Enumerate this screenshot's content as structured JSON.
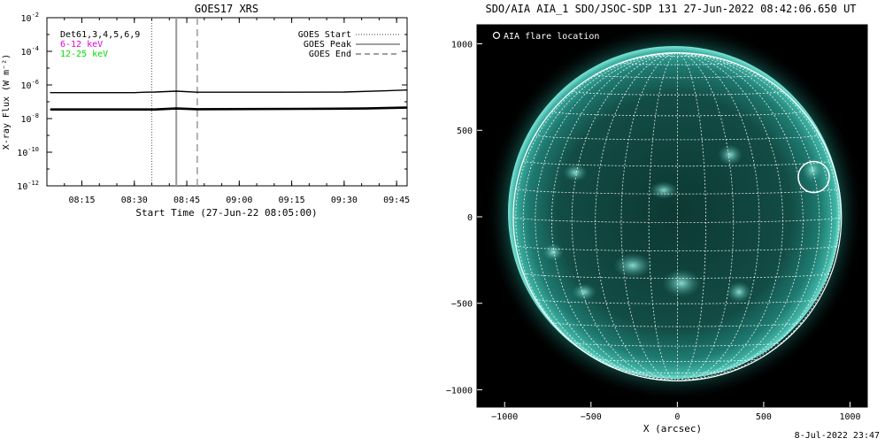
{
  "stamp": "8-Jul-2022 23:47",
  "chart_data": [
    {
      "type": "line",
      "title": "GOES17 XRS",
      "xlabel": "Start Time (27-Jun-22 08:05:00)",
      "ylabel": "X-ray Flux (W m⁻²)",
      "y_scale": "log",
      "ylim": [
        1e-12,
        0.01
      ],
      "y_ticks": [
        {
          "value": 0.01,
          "base": "10",
          "exp": "-2"
        },
        {
          "value": 0.0001,
          "base": "10",
          "exp": "-4"
        },
        {
          "value": 1e-06,
          "base": "10",
          "exp": "-6"
        },
        {
          "value": 1e-08,
          "base": "10",
          "exp": "-8"
        },
        {
          "value": 1e-10,
          "base": "10",
          "exp": "-10"
        },
        {
          "value": 1e-12,
          "base": "10",
          "exp": "-12"
        }
      ],
      "xlim": [
        "08:05",
        "09:48"
      ],
      "x_ticks": [
        "08:15",
        "08:30",
        "08:45",
        "09:00",
        "09:15",
        "09:30",
        "09:45"
      ],
      "legend_left": [
        {
          "text": "Det61,3,4,5,6,9",
          "color": "#000000"
        },
        {
          "text": "6-12 keV",
          "color": "#e000e0"
        },
        {
          "text": "12-25 keV",
          "color": "#00dd00"
        }
      ],
      "legend_right": [
        {
          "text": "GOES Start",
          "style": "dotted"
        },
        {
          "text": "GOES Peak",
          "style": "solid"
        },
        {
          "text": "GOES End",
          "style": "dashed"
        }
      ],
      "event_lines": {
        "start": "08:35",
        "peak": "08:42",
        "end": "08:48"
      },
      "series": [
        {
          "values": [
            [
              8.1,
              3.5e-07
            ],
            [
              8.5,
              3.5e-07
            ],
            [
              8.55,
              3.7e-07
            ],
            [
              8.6,
              3.8e-07
            ],
            [
              8.7,
              4.3e-07
            ],
            [
              8.8,
              3.7e-07
            ],
            [
              9.2,
              3.7e-07
            ],
            [
              9.5,
              3.8e-07
            ],
            [
              9.7,
              4.5e-07
            ],
            [
              9.8,
              5e-07
            ]
          ]
        },
        {
          "values": [
            [
              8.1,
              3.5e-08
            ],
            [
              8.6,
              3.5e-08
            ],
            [
              8.7,
              4e-08
            ],
            [
              8.8,
              3.6e-08
            ],
            [
              9.3,
              3.8e-08
            ],
            [
              9.6,
              4e-08
            ],
            [
              9.8,
              4.5e-08
            ]
          ]
        }
      ]
    },
    {
      "type": "image",
      "title": "SDO/AIA AIA_1 SDO/JSOC-SDP 131 27-Jun-2022 08:42:06.650 UT",
      "xlabel": "X (arcsec)",
      "ylabel": "",
      "xlim": [
        -1160,
        1100
      ],
      "ylim": [
        -1100,
        1110
      ],
      "x_ticks": [
        -1000,
        -500,
        0,
        500,
        1000
      ],
      "y_ticks": [
        1000,
        500,
        0,
        -500,
        -1000
      ],
      "legend": "AIA flare location",
      "flare_location": {
        "x": 790,
        "y": 230,
        "radius": 90
      },
      "solar_radius_arcsec": 950
    }
  ]
}
